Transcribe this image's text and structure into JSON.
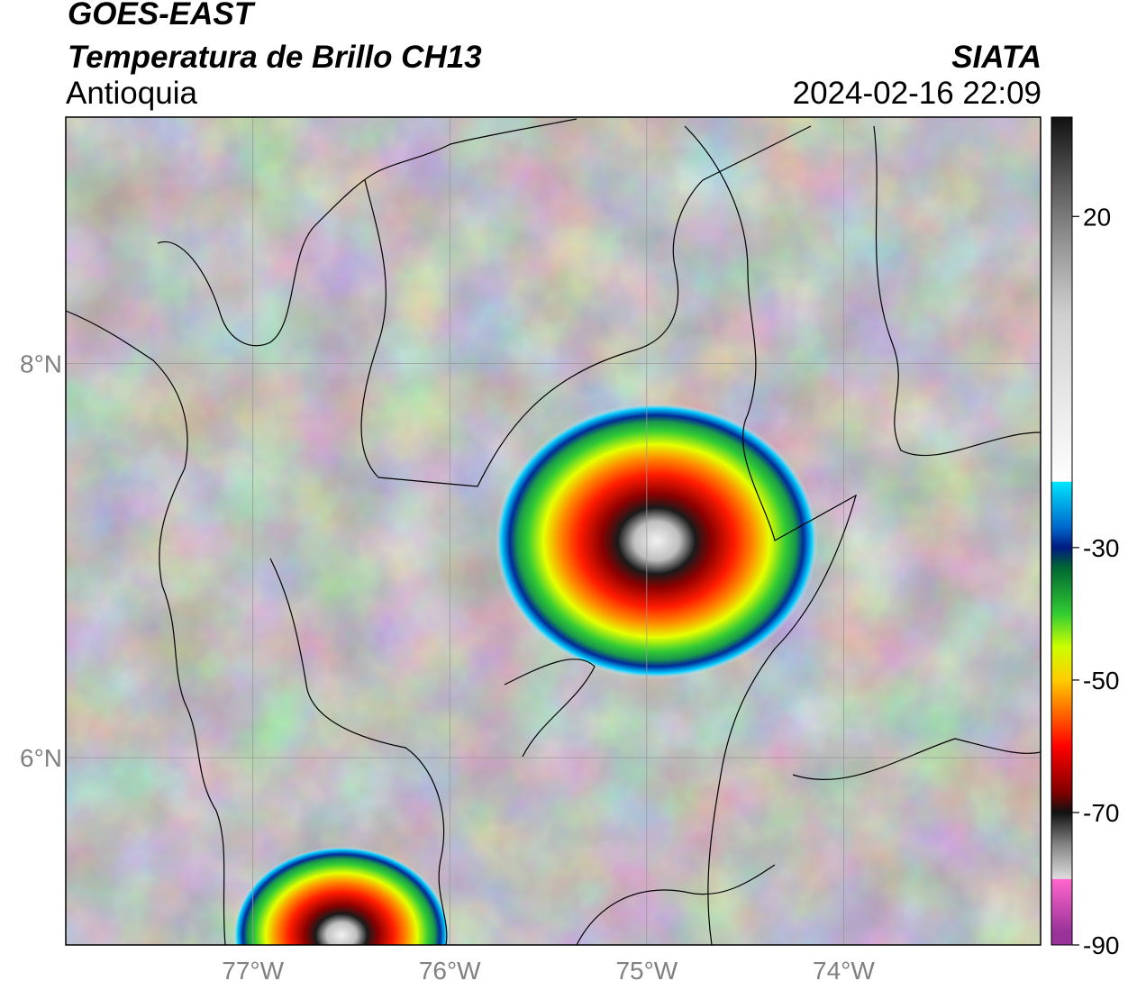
{
  "header": {
    "satellite": "GOES-EAST",
    "product": "Temperatura de Brillo CH13",
    "region": "Antioquia",
    "brand": "SIATA",
    "timestamp": "2024-02-16 22:09"
  },
  "map": {
    "lon_range": [
      -77.95,
      -73.0
    ],
    "lat_range": [
      5.05,
      9.25
    ],
    "lon_ticks": [
      {
        "value": -77,
        "label": "77°W"
      },
      {
        "value": -76,
        "label": "76°W"
      },
      {
        "value": -75,
        "label": "75°W"
      },
      {
        "value": -74,
        "label": "74°W"
      }
    ],
    "lat_ticks": [
      {
        "value": 8,
        "label": "8°N"
      },
      {
        "value": 6,
        "label": "6°N"
      }
    ],
    "grid": true,
    "tick_label_color": "#808080",
    "background_tones": [
      "#5a5a5a",
      "#7a7a7a",
      "#9a9a9a",
      "#bdbdbd",
      "#e6e6e6"
    ],
    "storms": [
      {
        "name": "storm-north",
        "center_lon": -74.95,
        "center_lat": 7.1,
        "rx_deg": 0.82,
        "ry_deg": 0.7
      },
      {
        "name": "storm-south",
        "center_lon": -76.55,
        "center_lat": 5.1,
        "rx_deg": 0.55,
        "ry_deg": 0.45
      }
    ]
  },
  "colorbar": {
    "vmin": -90,
    "vmax": 35,
    "ticks": [
      {
        "value": 20,
        "label": "20"
      },
      {
        "value": -30,
        "label": "-30"
      },
      {
        "value": -50,
        "label": "-50"
      },
      {
        "value": -70,
        "label": "-70"
      },
      {
        "value": -90,
        "label": "-90"
      }
    ],
    "stops": [
      {
        "value": 35,
        "color": "#111111"
      },
      {
        "value": 25,
        "color": "#5a5a5a"
      },
      {
        "value": 15,
        "color": "#9a9a9a"
      },
      {
        "value": 5,
        "color": "#d0d0d0"
      },
      {
        "value": -20,
        "color": "#ffffff"
      },
      {
        "value": -20.1,
        "color": "#00e5ff"
      },
      {
        "value": -27,
        "color": "#0066cc"
      },
      {
        "value": -30,
        "color": "#001a80"
      },
      {
        "value": -33,
        "color": "#006633"
      },
      {
        "value": -40,
        "color": "#33cc33"
      },
      {
        "value": -45,
        "color": "#ccff00"
      },
      {
        "value": -50,
        "color": "#ffcc00"
      },
      {
        "value": -55,
        "color": "#ff6600"
      },
      {
        "value": -60,
        "color": "#ff0000"
      },
      {
        "value": -67,
        "color": "#800000"
      },
      {
        "value": -70,
        "color": "#111111"
      },
      {
        "value": -75,
        "color": "#888888"
      },
      {
        "value": -80,
        "color": "#dddddd"
      },
      {
        "value": -80.1,
        "color": "#ff66cc"
      },
      {
        "value": -88,
        "color": "#993399"
      },
      {
        "value": -89.9,
        "color": "#993399"
      },
      {
        "value": -90,
        "color": "#ffffff"
      }
    ]
  }
}
